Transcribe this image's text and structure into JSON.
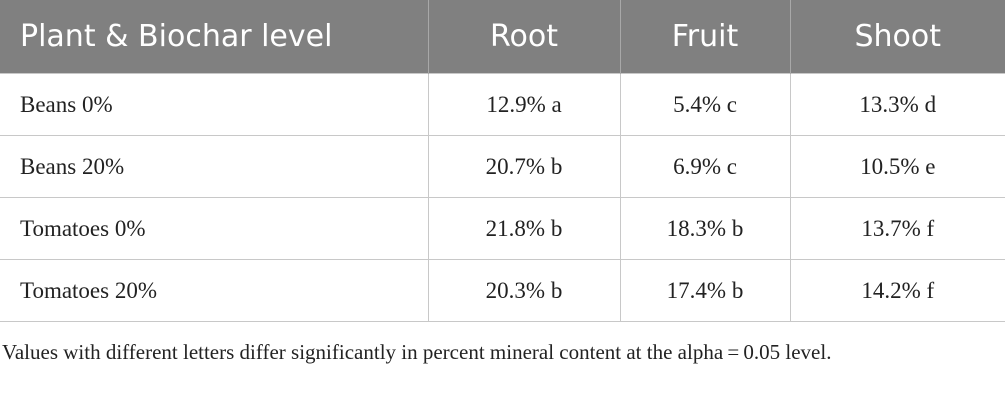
{
  "table": {
    "header": [
      "Plant & Biochar level",
      "Root",
      "Fruit",
      "Shoot"
    ],
    "rows": [
      [
        "Beans 0%",
        "12.9% a",
        "5.4% c",
        "13.3% d"
      ],
      [
        "Beans 20%",
        "20.7% b",
        "6.9% c",
        "10.5% e"
      ],
      [
        "Tomatoes 0%",
        "21.8% b",
        "18.3% b",
        "13.7% f"
      ],
      [
        "Tomatoes 20%",
        "20.3% b",
        "17.4% b",
        "14.2% f"
      ]
    ]
  },
  "footnote": "Values with different letters differ significantly in percent mineral content at the alpha = 0.05 level."
}
